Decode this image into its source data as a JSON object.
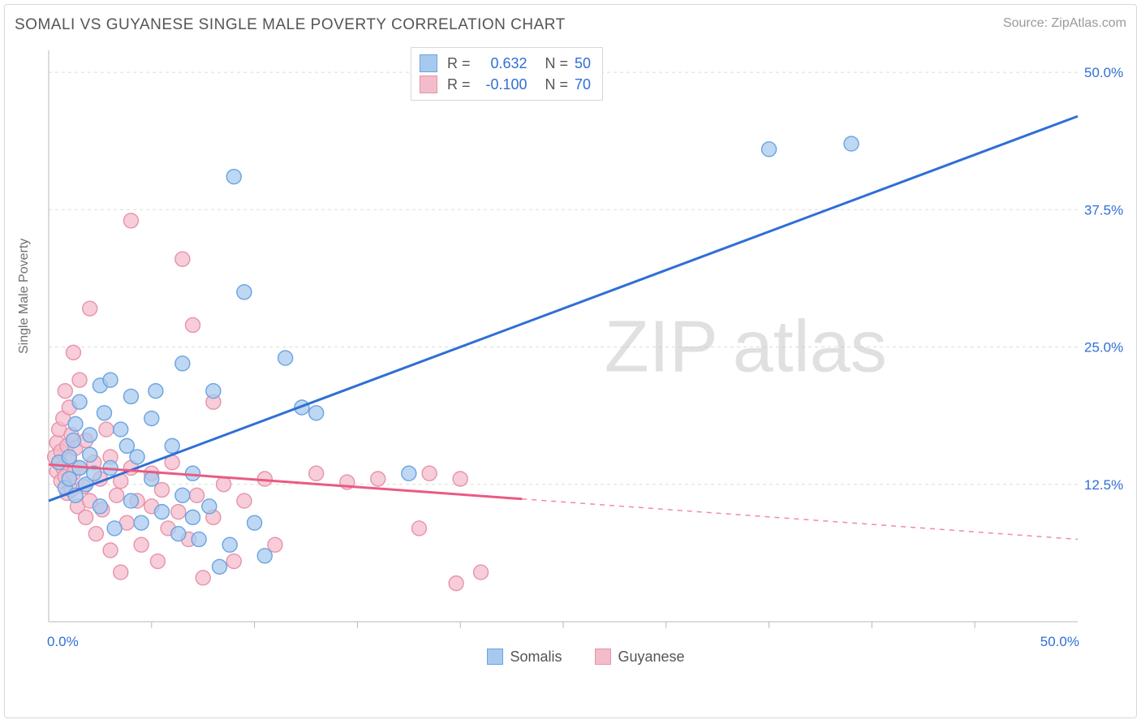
{
  "title": "SOMALI VS GUYANESE SINGLE MALE POVERTY CORRELATION CHART",
  "source_label": "Source: ",
  "source_value": "ZipAtlas.com",
  "ylabel": "Single Male Poverty",
  "watermark_a": "ZIP",
  "watermark_b": "atlas",
  "chart": {
    "type": "scatter",
    "xlim": [
      0,
      50
    ],
    "ylim": [
      0,
      52
    ],
    "yticks": [
      12.5,
      25.0,
      37.5,
      50.0
    ],
    "ytick_labels": [
      "12.5%",
      "25.0%",
      "37.5%",
      "50.0%"
    ],
    "x_axis_min_label": "0.0%",
    "x_axis_max_label": "50.0%",
    "x_minor_ticks": [
      5,
      10,
      15,
      20,
      25,
      30,
      35,
      40,
      45
    ],
    "background": "#ffffff",
    "grid_color": "#dcdcdc",
    "axis_color": "#b8b8b8",
    "label_color": "#2f6fd6",
    "marker_radius": 9,
    "series": [
      {
        "name": "Somalis",
        "fill": "#a8c9ef",
        "stroke": "#6aa3e0",
        "R": "0.632",
        "N": "50",
        "line": {
          "color": "#2f6fd6",
          "width": 3,
          "y_at_x0": 11.0,
          "y_at_x50": 46.0,
          "solid_to_x": 50,
          "dashed": false
        },
        "points": [
          [
            0.5,
            14.5
          ],
          [
            0.8,
            12.2
          ],
          [
            1.0,
            15.0
          ],
          [
            1.0,
            13.0
          ],
          [
            1.2,
            16.5
          ],
          [
            1.3,
            11.5
          ],
          [
            1.3,
            18.0
          ],
          [
            1.5,
            14.0
          ],
          [
            1.5,
            20.0
          ],
          [
            1.8,
            12.5
          ],
          [
            2.0,
            17.0
          ],
          [
            2.0,
            15.2
          ],
          [
            2.2,
            13.5
          ],
          [
            2.5,
            21.5
          ],
          [
            2.5,
            10.5
          ],
          [
            2.7,
            19.0
          ],
          [
            3.0,
            22.0
          ],
          [
            3.0,
            14.0
          ],
          [
            3.2,
            8.5
          ],
          [
            3.5,
            17.5
          ],
          [
            3.8,
            16.0
          ],
          [
            4.0,
            11.0
          ],
          [
            4.0,
            20.5
          ],
          [
            4.3,
            15.0
          ],
          [
            4.5,
            9.0
          ],
          [
            5.0,
            18.5
          ],
          [
            5.0,
            13.0
          ],
          [
            5.2,
            21.0
          ],
          [
            5.5,
            10.0
          ],
          [
            6.0,
            16.0
          ],
          [
            6.3,
            8.0
          ],
          [
            6.5,
            23.5
          ],
          [
            7.0,
            9.5
          ],
          [
            7.0,
            13.5
          ],
          [
            7.3,
            7.5
          ],
          [
            7.8,
            10.5
          ],
          [
            8.0,
            21.0
          ],
          [
            8.3,
            5.0
          ],
          [
            8.8,
            7.0
          ],
          [
            9.0,
            40.5
          ],
          [
            9.5,
            30.0
          ],
          [
            10.0,
            9.0
          ],
          [
            10.5,
            6.0
          ],
          [
            11.5,
            24.0
          ],
          [
            12.3,
            19.5
          ],
          [
            13.0,
            19.0
          ],
          [
            17.5,
            13.5
          ],
          [
            35.0,
            43.0
          ],
          [
            39.0,
            43.5
          ],
          [
            6.5,
            11.5
          ]
        ]
      },
      {
        "name": "Guyanese",
        "fill": "#f3bccb",
        "stroke": "#e892aa",
        "R": "-0.100",
        "N": "70",
        "line": {
          "color": "#ea5a82",
          "width": 3,
          "y_at_x0": 14.3,
          "y_at_x50": 7.5,
          "solid_to_x": 23,
          "dashed": true
        },
        "points": [
          [
            0.3,
            15.0
          ],
          [
            0.4,
            13.7
          ],
          [
            0.4,
            16.3
          ],
          [
            0.5,
            14.5
          ],
          [
            0.5,
            17.5
          ],
          [
            0.6,
            12.8
          ],
          [
            0.6,
            15.5
          ],
          [
            0.7,
            14.0
          ],
          [
            0.7,
            18.5
          ],
          [
            0.8,
            13.2
          ],
          [
            0.8,
            21.0
          ],
          [
            0.9,
            11.7
          ],
          [
            0.9,
            16.0
          ],
          [
            1.0,
            14.7
          ],
          [
            1.0,
            19.5
          ],
          [
            1.1,
            12.0
          ],
          [
            1.1,
            17.0
          ],
          [
            1.2,
            24.5
          ],
          [
            1.2,
            13.5
          ],
          [
            1.3,
            15.8
          ],
          [
            1.4,
            10.5
          ],
          [
            1.5,
            14.0
          ],
          [
            1.5,
            22.0
          ],
          [
            1.7,
            12.3
          ],
          [
            1.8,
            16.5
          ],
          [
            1.8,
            9.5
          ],
          [
            2.0,
            11.0
          ],
          [
            2.0,
            28.5
          ],
          [
            2.2,
            14.5
          ],
          [
            2.3,
            8.0
          ],
          [
            2.5,
            13.0
          ],
          [
            2.6,
            10.2
          ],
          [
            2.8,
            17.5
          ],
          [
            3.0,
            15.0
          ],
          [
            3.0,
            6.5
          ],
          [
            3.3,
            11.5
          ],
          [
            3.5,
            12.8
          ],
          [
            3.5,
            4.5
          ],
          [
            3.8,
            9.0
          ],
          [
            4.0,
            14.0
          ],
          [
            4.0,
            36.5
          ],
          [
            4.3,
            11.0
          ],
          [
            4.5,
            7.0
          ],
          [
            5.0,
            10.5
          ],
          [
            5.0,
            13.5
          ],
          [
            5.3,
            5.5
          ],
          [
            5.5,
            12.0
          ],
          [
            5.8,
            8.5
          ],
          [
            6.0,
            14.5
          ],
          [
            6.3,
            10.0
          ],
          [
            6.5,
            33.0
          ],
          [
            6.8,
            7.5
          ],
          [
            7.0,
            27.0
          ],
          [
            7.2,
            11.5
          ],
          [
            7.5,
            4.0
          ],
          [
            8.0,
            9.5
          ],
          [
            8.0,
            20.0
          ],
          [
            8.5,
            12.5
          ],
          [
            9.0,
            5.5
          ],
          [
            9.5,
            11.0
          ],
          [
            10.5,
            13.0
          ],
          [
            11.0,
            7.0
          ],
          [
            13.0,
            13.5
          ],
          [
            14.5,
            12.7
          ],
          [
            16.0,
            13.0
          ],
          [
            18.0,
            8.5
          ],
          [
            18.5,
            13.5
          ],
          [
            19.8,
            3.5
          ],
          [
            20.0,
            13.0
          ],
          [
            21.0,
            4.5
          ]
        ]
      }
    ]
  },
  "legend_R_label": "R  =",
  "legend_N_label": "N  ="
}
